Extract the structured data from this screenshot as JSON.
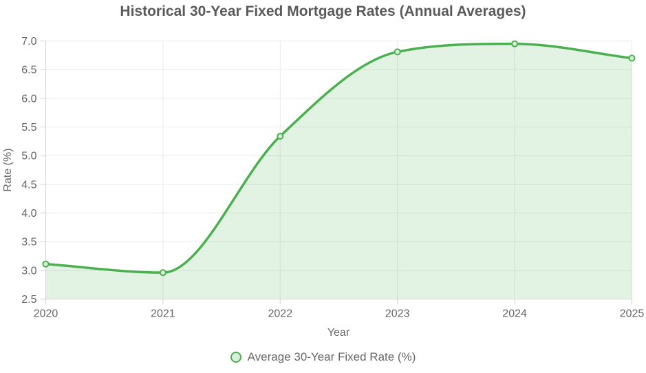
{
  "chart_data": {
    "type": "area",
    "title": "Historical 30-Year Fixed Mortgage Rates (Annual Averages)",
    "x": [
      2020,
      2021,
      2022,
      2023,
      2024,
      2025
    ],
    "series": [
      {
        "name": "Average 30-Year Fixed Rate (%)",
        "values": [
          3.11,
          2.96,
          5.34,
          6.81,
          6.95,
          6.7
        ]
      }
    ],
    "xlabel": "Year",
    "ylabel": "Rate (%)",
    "ylim": [
      2.5,
      7.0
    ],
    "yticks": [
      2.5,
      3.0,
      3.5,
      4.0,
      4.5,
      5.0,
      5.5,
      6.0,
      6.5,
      7.0
    ],
    "ytick_decimals": 1,
    "grid": true,
    "legend_position": "bottom",
    "line_smoothing": "monotone",
    "colors": {
      "line": "#4caf50",
      "area_fill": "rgba(76,175,80,0.16)",
      "marker_fill": "#dcefdc",
      "grid": "#e9e9e9",
      "axis": "#d4d4d4",
      "tick_text": "#666666",
      "axis_title_text": "#666666",
      "title_text": "#5a5a5a"
    }
  }
}
